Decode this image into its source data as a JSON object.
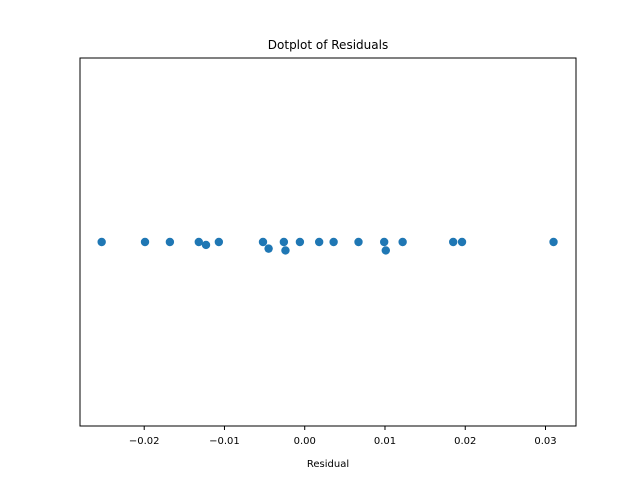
{
  "chart_data": {
    "type": "scatter",
    "title": "Dotplot of Residuals",
    "xlabel": "Residual",
    "ylabel": "",
    "xlim": [
      -0.028,
      0.0338
    ],
    "ylim": [
      -1,
      1
    ],
    "x_ticks": [
      -0.02,
      -0.01,
      0.0,
      0.01,
      0.02,
      0.03
    ],
    "x_tick_labels": [
      "−0.02",
      "−0.01",
      "0.00",
      "0.01",
      "0.02",
      "0.03"
    ],
    "show_y_ticks": false,
    "grid": false,
    "legend": false,
    "marker_color": "#1f77b4",
    "points": [
      {
        "x": -0.0253,
        "y": 0.0
      },
      {
        "x": -0.0199,
        "y": 0.0
      },
      {
        "x": -0.0168,
        "y": 0.0
      },
      {
        "x": -0.0132,
        "y": 0.0
      },
      {
        "x": -0.0123,
        "y": -0.016
      },
      {
        "x": -0.0107,
        "y": 0.0
      },
      {
        "x": -0.0052,
        "y": 0.0
      },
      {
        "x": -0.0045,
        "y": -0.036
      },
      {
        "x": -0.0026,
        "y": 0.0
      },
      {
        "x": -0.0024,
        "y": -0.046
      },
      {
        "x": -0.0006,
        "y": 0.0
      },
      {
        "x": 0.0018,
        "y": 0.0
      },
      {
        "x": 0.0036,
        "y": 0.0
      },
      {
        "x": 0.0067,
        "y": 0.0
      },
      {
        "x": 0.0099,
        "y": 0.0
      },
      {
        "x": 0.0101,
        "y": -0.046
      },
      {
        "x": 0.0122,
        "y": 0.0
      },
      {
        "x": 0.0185,
        "y": 0.0
      },
      {
        "x": 0.0196,
        "y": 0.0
      },
      {
        "x": 0.031,
        "y": 0.0
      }
    ]
  }
}
